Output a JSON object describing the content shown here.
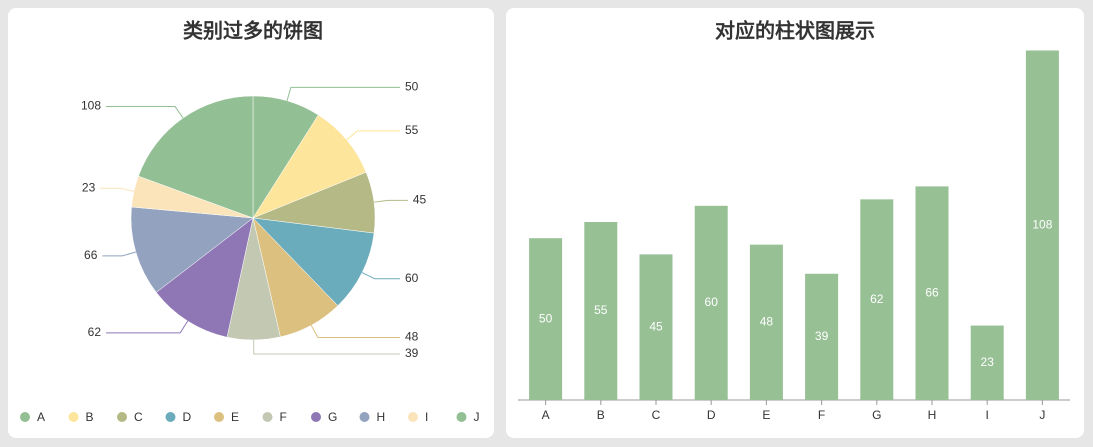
{
  "chart_data": [
    {
      "type": "pie",
      "title": "类别过多的饼图",
      "categories": [
        "A",
        "B",
        "C",
        "D",
        "E",
        "F",
        "G",
        "H",
        "I",
        "J"
      ],
      "values": [
        50,
        55,
        45,
        60,
        48,
        39,
        62,
        66,
        23,
        108
      ],
      "colors": [
        "#93bf94",
        "#fde59b",
        "#b5b985",
        "#6aacbb",
        "#dcc07f",
        "#c3c8b3",
        "#8f77b5",
        "#93a2bf",
        "#fbe4b9",
        "#93bf94"
      ],
      "legend": "bottom"
    },
    {
      "type": "bar",
      "title": "对应的柱状图展示",
      "categories": [
        "A",
        "B",
        "C",
        "D",
        "E",
        "F",
        "G",
        "H",
        "I",
        "J"
      ],
      "values": [
        50,
        55,
        45,
        60,
        48,
        39,
        62,
        66,
        23,
        108
      ],
      "color": "#97c095",
      "ylim": [
        0,
        110
      ]
    }
  ]
}
